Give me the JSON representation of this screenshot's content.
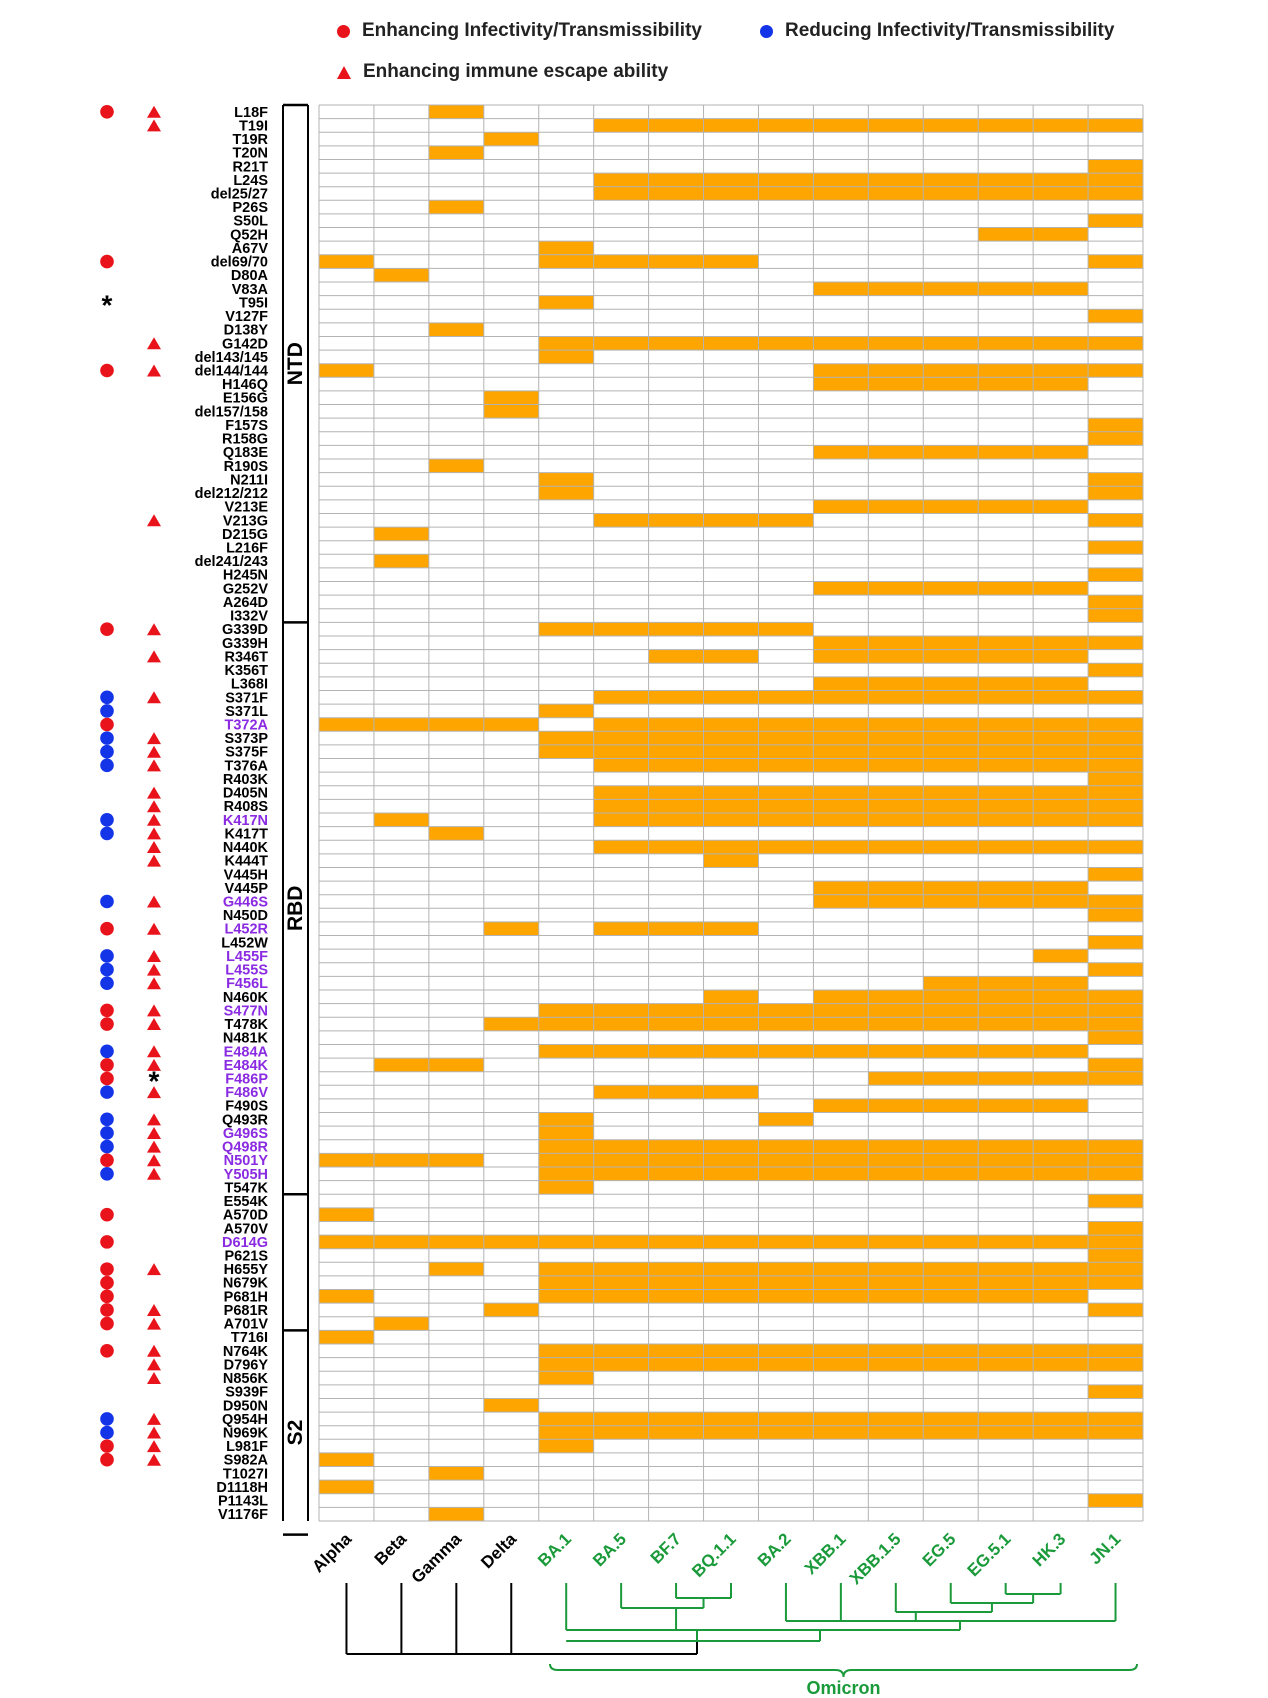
{
  "colors": {
    "enhancing": "#e8131b",
    "reducing": "#1434e8",
    "cell_fill": "#ffa500",
    "grid": "#b3b3b3",
    "purple_label": "#8a2be2",
    "omicron_green": "#1a9a3a",
    "black": "#000000"
  },
  "legend": {
    "enhancing_infectivity": "Enhancing Infectivity/Transmissibility",
    "reducing_infectivity": "Reducing Infectivity/Transmissibility",
    "enhancing_immune_escape": "Enhancing immune escape ability"
  },
  "regions": [
    {
      "label": "NTD",
      "first_row": 0,
      "last_row": 37
    },
    {
      "label": "RBD",
      "first_row": 38,
      "last_row": 79
    },
    {
      "label": "",
      "first_row": 80,
      "last_row": 89
    },
    {
      "label": "S2",
      "first_row": 90,
      "last_row": 104
    }
  ],
  "variants": [
    {
      "name": "Alpha",
      "color": "black"
    },
    {
      "name": "Beta",
      "color": "black"
    },
    {
      "name": "Gamma",
      "color": "black"
    },
    {
      "name": "Delta",
      "color": "black"
    },
    {
      "name": "BA.1",
      "color": "green"
    },
    {
      "name": "BA.5",
      "color": "green"
    },
    {
      "name": "BF.7",
      "color": "green"
    },
    {
      "name": "BQ.1.1",
      "color": "green"
    },
    {
      "name": "BA.2",
      "color": "green"
    },
    {
      "name": "XBB.1",
      "color": "green"
    },
    {
      "name": "XBB.1.5",
      "color": "green"
    },
    {
      "name": "EG.5",
      "color": "green"
    },
    {
      "name": "EG.5.1",
      "color": "green"
    },
    {
      "name": "HK.3",
      "color": "green"
    },
    {
      "name": "JN.1",
      "color": "green"
    }
  ],
  "omicron_label": "Omicron",
  "mutations": [
    {
      "name": "L18F",
      "c1": "R",
      "c2": "T",
      "cols": [
        2
      ],
      "purple": false
    },
    {
      "name": "T19I",
      "c1": "",
      "c2": "T",
      "cols": [
        5,
        6,
        7,
        8,
        9,
        10,
        11,
        12,
        13,
        14
      ],
      "purple": false
    },
    {
      "name": "T19R",
      "c1": "",
      "c2": "",
      "cols": [
        3
      ],
      "purple": false
    },
    {
      "name": "T20N",
      "c1": "",
      "c2": "",
      "cols": [
        2
      ],
      "purple": false
    },
    {
      "name": "R21T",
      "c1": "",
      "c2": "",
      "cols": [
        14
      ],
      "purple": false
    },
    {
      "name": "L24S",
      "c1": "",
      "c2": "",
      "cols": [
        5,
        6,
        7,
        8,
        9,
        10,
        11,
        12,
        13,
        14
      ],
      "purple": false
    },
    {
      "name": "del25/27",
      "c1": "",
      "c2": "",
      "cols": [
        5,
        6,
        7,
        8,
        9,
        10,
        11,
        12,
        13,
        14
      ],
      "purple": false
    },
    {
      "name": "P26S",
      "c1": "",
      "c2": "",
      "cols": [
        2
      ],
      "purple": false
    },
    {
      "name": "S50L",
      "c1": "",
      "c2": "",
      "cols": [
        14
      ],
      "purple": false
    },
    {
      "name": "Q52H",
      "c1": "",
      "c2": "",
      "cols": [
        12,
        13
      ],
      "purple": false
    },
    {
      "name": "A67V",
      "c1": "",
      "c2": "",
      "cols": [
        4
      ],
      "purple": false
    },
    {
      "name": "del69/70",
      "c1": "R",
      "c2": "",
      "cols": [
        0,
        4,
        5,
        6,
        7,
        14
      ],
      "purple": false
    },
    {
      "name": "D80A",
      "c1": "",
      "c2": "",
      "cols": [
        1
      ],
      "purple": false
    },
    {
      "name": "V83A",
      "c1": "",
      "c2": "",
      "cols": [
        9,
        10,
        11,
        12,
        13
      ],
      "purple": false
    },
    {
      "name": "T95I",
      "c1": "*",
      "c2": "",
      "cols": [
        4
      ],
      "purple": false
    },
    {
      "name": "V127F",
      "c1": "",
      "c2": "",
      "cols": [
        14
      ],
      "purple": false
    },
    {
      "name": "D138Y",
      "c1": "",
      "c2": "",
      "cols": [
        2
      ],
      "purple": false
    },
    {
      "name": "G142D",
      "c1": "",
      "c2": "T",
      "cols": [
        4,
        5,
        6,
        7,
        8,
        9,
        10,
        11,
        12,
        13,
        14
      ],
      "purple": false
    },
    {
      "name": "del143/145",
      "c1": "",
      "c2": "",
      "cols": [
        4
      ],
      "purple": false
    },
    {
      "name": "del144/144",
      "c1": "R",
      "c2": "T",
      "cols": [
        0,
        9,
        10,
        11,
        12,
        13,
        14
      ],
      "purple": false
    },
    {
      "name": "H146Q",
      "c1": "",
      "c2": "",
      "cols": [
        9,
        10,
        11,
        12,
        13
      ],
      "purple": false
    },
    {
      "name": "E156G",
      "c1": "",
      "c2": "",
      "cols": [
        3
      ],
      "purple": false
    },
    {
      "name": "del157/158",
      "c1": "",
      "c2": "",
      "cols": [
        3
      ],
      "purple": false
    },
    {
      "name": "F157S",
      "c1": "",
      "c2": "",
      "cols": [
        14
      ],
      "purple": false
    },
    {
      "name": "R158G",
      "c1": "",
      "c2": "",
      "cols": [
        14
      ],
      "purple": false
    },
    {
      "name": "Q183E",
      "c1": "",
      "c2": "",
      "cols": [
        9,
        10,
        11,
        12,
        13
      ],
      "purple": false
    },
    {
      "name": "R190S",
      "c1": "",
      "c2": "",
      "cols": [
        2
      ],
      "purple": false
    },
    {
      "name": "N211I",
      "c1": "",
      "c2": "",
      "cols": [
        4,
        14
      ],
      "purple": false
    },
    {
      "name": "del212/212",
      "c1": "",
      "c2": "",
      "cols": [
        4,
        14
      ],
      "purple": false
    },
    {
      "name": "V213E",
      "c1": "",
      "c2": "",
      "cols": [
        9,
        10,
        11,
        12,
        13
      ],
      "purple": false
    },
    {
      "name": "V213G",
      "c1": "",
      "c2": "T",
      "cols": [
        5,
        6,
        7,
        8,
        14
      ],
      "purple": false
    },
    {
      "name": "D215G",
      "c1": "",
      "c2": "",
      "cols": [
        1
      ],
      "purple": false
    },
    {
      "name": "L216F",
      "c1": "",
      "c2": "",
      "cols": [
        14
      ],
      "purple": false
    },
    {
      "name": "del241/243",
      "c1": "",
      "c2": "",
      "cols": [
        1
      ],
      "purple": false
    },
    {
      "name": "H245N",
      "c1": "",
      "c2": "",
      "cols": [
        14
      ],
      "purple": false
    },
    {
      "name": "G252V",
      "c1": "",
      "c2": "",
      "cols": [
        9,
        10,
        11,
        12,
        13
      ],
      "purple": false
    },
    {
      "name": "A264D",
      "c1": "",
      "c2": "",
      "cols": [
        14
      ],
      "purple": false
    },
    {
      "name": "I332V",
      "c1": "",
      "c2": "",
      "cols": [
        14
      ],
      "purple": false
    },
    {
      "name": "G339D",
      "c1": "R",
      "c2": "T",
      "cols": [
        4,
        5,
        6,
        7,
        8
      ],
      "purple": false
    },
    {
      "name": "G339H",
      "c1": "",
      "c2": "",
      "cols": [
        9,
        10,
        11,
        12,
        13,
        14
      ],
      "purple": false
    },
    {
      "name": "R346T",
      "c1": "",
      "c2": "T",
      "cols": [
        6,
        7,
        9,
        10,
        11,
        12,
        13
      ],
      "purple": false
    },
    {
      "name": "K356T",
      "c1": "",
      "c2": "",
      "cols": [
        14
      ],
      "purple": false
    },
    {
      "name": "L368I",
      "c1": "",
      "c2": "",
      "cols": [
        9,
        10,
        11,
        12,
        13
      ],
      "purple": false
    },
    {
      "name": "S371F",
      "c1": "B",
      "c2": "T",
      "cols": [
        5,
        6,
        7,
        8,
        9,
        10,
        11,
        12,
        13,
        14
      ],
      "purple": false
    },
    {
      "name": "S371L",
      "c1": "B",
      "c2": "",
      "cols": [
        4
      ],
      "purple": false
    },
    {
      "name": "T372A",
      "c1": "R",
      "c2": "",
      "cols": [
        0,
        1,
        2,
        3,
        5,
        6,
        7,
        8,
        9,
        10,
        11,
        12,
        13,
        14
      ],
      "purple": true
    },
    {
      "name": "S373P",
      "c1": "B",
      "c2": "T",
      "cols": [
        4,
        5,
        6,
        7,
        8,
        9,
        10,
        11,
        12,
        13,
        14
      ],
      "purple": false
    },
    {
      "name": "S375F",
      "c1": "B",
      "c2": "T",
      "cols": [
        4,
        5,
        6,
        7,
        8,
        9,
        10,
        11,
        12,
        13,
        14
      ],
      "purple": false
    },
    {
      "name": "T376A",
      "c1": "B",
      "c2": "T",
      "cols": [
        5,
        6,
        7,
        8,
        9,
        10,
        11,
        12,
        13,
        14
      ],
      "purple": false
    },
    {
      "name": "R403K",
      "c1": "",
      "c2": "",
      "cols": [
        14
      ],
      "purple": false
    },
    {
      "name": "D405N",
      "c1": "",
      "c2": "T",
      "cols": [
        5,
        6,
        7,
        8,
        9,
        10,
        11,
        12,
        13,
        14
      ],
      "purple": false
    },
    {
      "name": "R408S",
      "c1": "",
      "c2": "T",
      "cols": [
        5,
        6,
        7,
        8,
        9,
        10,
        11,
        12,
        13,
        14
      ],
      "purple": false
    },
    {
      "name": "K417N",
      "c1": "B",
      "c2": "T",
      "cols": [
        1,
        5,
        6,
        7,
        8,
        9,
        10,
        11,
        12,
        13,
        14
      ],
      "purple": true
    },
    {
      "name": "K417T",
      "c1": "B",
      "c2": "T",
      "cols": [
        2
      ],
      "purple": false
    },
    {
      "name": "N440K",
      "c1": "",
      "c2": "T",
      "cols": [
        5,
        6,
        7,
        8,
        9,
        10,
        11,
        12,
        13,
        14
      ],
      "purple": false
    },
    {
      "name": "K444T",
      "c1": "",
      "c2": "T",
      "cols": [
        7
      ],
      "purple": false
    },
    {
      "name": "V445H",
      "c1": "",
      "c2": "",
      "cols": [
        14
      ],
      "purple": false
    },
    {
      "name": "V445P",
      "c1": "",
      "c2": "",
      "cols": [
        9,
        10,
        11,
        12,
        13
      ],
      "purple": false
    },
    {
      "name": "G446S",
      "c1": "B",
      "c2": "T",
      "cols": [
        9,
        10,
        11,
        12,
        13,
        14
      ],
      "purple": true
    },
    {
      "name": "N450D",
      "c1": "",
      "c2": "",
      "cols": [
        14
      ],
      "purple": false
    },
    {
      "name": "L452R",
      "c1": "R",
      "c2": "T",
      "cols": [
        3,
        5,
        6,
        7
      ],
      "purple": true
    },
    {
      "name": "L452W",
      "c1": "",
      "c2": "",
      "cols": [
        14
      ],
      "purple": false
    },
    {
      "name": "L455F",
      "c1": "B",
      "c2": "T",
      "cols": [
        13
      ],
      "purple": true
    },
    {
      "name": "L455S",
      "c1": "B",
      "c2": "T",
      "cols": [
        14
      ],
      "purple": true
    },
    {
      "name": "F456L",
      "c1": "B",
      "c2": "T",
      "cols": [
        11,
        12,
        13
      ],
      "purple": true
    },
    {
      "name": "N460K",
      "c1": "",
      "c2": "",
      "cols": [
        7,
        9,
        10,
        11,
        12,
        13,
        14
      ],
      "purple": false
    },
    {
      "name": "S477N",
      "c1": "R",
      "c2": "T",
      "cols": [
        4,
        5,
        6,
        7,
        8,
        9,
        10,
        11,
        12,
        13,
        14
      ],
      "purple": true
    },
    {
      "name": "T478K",
      "c1": "R",
      "c2": "T",
      "cols": [
        3,
        4,
        5,
        6,
        7,
        8,
        9,
        10,
        11,
        12,
        13,
        14
      ],
      "purple": false
    },
    {
      "name": "N481K",
      "c1": "",
      "c2": "",
      "cols": [
        14
      ],
      "purple": false
    },
    {
      "name": "E484A",
      "c1": "B",
      "c2": "T",
      "cols": [
        4,
        5,
        6,
        7,
        8,
        9,
        10,
        11,
        12,
        13
      ],
      "purple": true
    },
    {
      "name": "E484K",
      "c1": "R",
      "c2": "T",
      "cols": [
        1,
        2,
        14
      ],
      "purple": true
    },
    {
      "name": "F486P",
      "c1": "R",
      "c2": "*",
      "cols": [
        10,
        11,
        12,
        13,
        14
      ],
      "purple": true
    },
    {
      "name": "F486V",
      "c1": "B",
      "c2": "T",
      "cols": [
        5,
        6,
        7
      ],
      "purple": true
    },
    {
      "name": "F490S",
      "c1": "",
      "c2": "",
      "cols": [
        9,
        10,
        11,
        12,
        13
      ],
      "purple": false
    },
    {
      "name": "Q493R",
      "c1": "B",
      "c2": "T",
      "cols": [
        4,
        8
      ],
      "purple": false
    },
    {
      "name": "G496S",
      "c1": "B",
      "c2": "T",
      "cols": [
        4
      ],
      "purple": true
    },
    {
      "name": "Q498R",
      "c1": "B",
      "c2": "T",
      "cols": [
        4,
        5,
        6,
        7,
        8,
        9,
        10,
        11,
        12,
        13,
        14
      ],
      "purple": true
    },
    {
      "name": "N501Y",
      "c1": "R",
      "c2": "T",
      "cols": [
        0,
        1,
        2,
        4,
        5,
        6,
        7,
        8,
        9,
        10,
        11,
        12,
        13,
        14
      ],
      "purple": true
    },
    {
      "name": "Y505H",
      "c1": "B",
      "c2": "T",
      "cols": [
        4,
        5,
        6,
        7,
        8,
        9,
        10,
        11,
        12,
        13,
        14
      ],
      "purple": true
    },
    {
      "name": "T547K",
      "c1": "",
      "c2": "",
      "cols": [
        4
      ],
      "purple": false
    },
    {
      "name": "E554K",
      "c1": "",
      "c2": "",
      "cols": [
        14
      ],
      "purple": false
    },
    {
      "name": "A570D",
      "c1": "R",
      "c2": "",
      "cols": [
        0
      ],
      "purple": false
    },
    {
      "name": "A570V",
      "c1": "",
      "c2": "",
      "cols": [
        14
      ],
      "purple": false
    },
    {
      "name": "D614G",
      "c1": "R",
      "c2": "",
      "cols": [
        0,
        1,
        2,
        3,
        4,
        5,
        6,
        7,
        8,
        9,
        10,
        11,
        12,
        13,
        14
      ],
      "purple": true
    },
    {
      "name": "P621S",
      "c1": "",
      "c2": "",
      "cols": [
        14
      ],
      "purple": false
    },
    {
      "name": "H655Y",
      "c1": "R",
      "c2": "T",
      "cols": [
        2,
        4,
        5,
        6,
        7,
        8,
        9,
        10,
        11,
        12,
        13,
        14
      ],
      "purple": false
    },
    {
      "name": "N679K",
      "c1": "R",
      "c2": "",
      "cols": [
        4,
        5,
        6,
        7,
        8,
        9,
        10,
        11,
        12,
        13,
        14
      ],
      "purple": false
    },
    {
      "name": "P681H",
      "c1": "R",
      "c2": "",
      "cols": [
        0,
        4,
        5,
        6,
        7,
        8,
        9,
        10,
        11,
        12,
        13
      ],
      "purple": false
    },
    {
      "name": "P681R",
      "c1": "R",
      "c2": "T",
      "cols": [
        3,
        14
      ],
      "purple": false
    },
    {
      "name": "A701V",
      "c1": "R",
      "c2": "T",
      "cols": [
        1
      ],
      "purple": false
    },
    {
      "name": "T716I",
      "c1": "",
      "c2": "",
      "cols": [
        0
      ],
      "purple": false
    },
    {
      "name": "N764K",
      "c1": "R",
      "c2": "T",
      "cols": [
        4,
        5,
        6,
        7,
        8,
        9,
        10,
        11,
        12,
        13,
        14
      ],
      "purple": false
    },
    {
      "name": "D796Y",
      "c1": "",
      "c2": "T",
      "cols": [
        4,
        5,
        6,
        7,
        8,
        9,
        10,
        11,
        12,
        13,
        14
      ],
      "purple": false
    },
    {
      "name": "N856K",
      "c1": "",
      "c2": "T",
      "cols": [
        4
      ],
      "purple": false
    },
    {
      "name": "S939F",
      "c1": "",
      "c2": "",
      "cols": [
        14
      ],
      "purple": false
    },
    {
      "name": "D950N",
      "c1": "",
      "c2": "",
      "cols": [
        3
      ],
      "purple": false
    },
    {
      "name": "Q954H",
      "c1": "B",
      "c2": "T",
      "cols": [
        4,
        5,
        6,
        7,
        8,
        9,
        10,
        11,
        12,
        13,
        14
      ],
      "purple": false
    },
    {
      "name": "N969K",
      "c1": "B",
      "c2": "T",
      "cols": [
        4,
        5,
        6,
        7,
        8,
        9,
        10,
        11,
        12,
        13,
        14
      ],
      "purple": false
    },
    {
      "name": "L981F",
      "c1": "R",
      "c2": "T",
      "cols": [
        4
      ],
      "purple": false
    },
    {
      "name": "S982A",
      "c1": "R",
      "c2": "T",
      "cols": [
        0
      ],
      "purple": false
    },
    {
      "name": "T1027I",
      "c1": "",
      "c2": "",
      "cols": [
        2
      ],
      "purple": false
    },
    {
      "name": "D1118H",
      "c1": "",
      "c2": "",
      "cols": [
        0
      ],
      "purple": false
    },
    {
      "name": "P1143L",
      "c1": "",
      "c2": "",
      "cols": [
        14
      ],
      "purple": false
    },
    {
      "name": "V1176F",
      "c1": "",
      "c2": "",
      "cols": [
        2
      ],
      "purple": false
    }
  ]
}
